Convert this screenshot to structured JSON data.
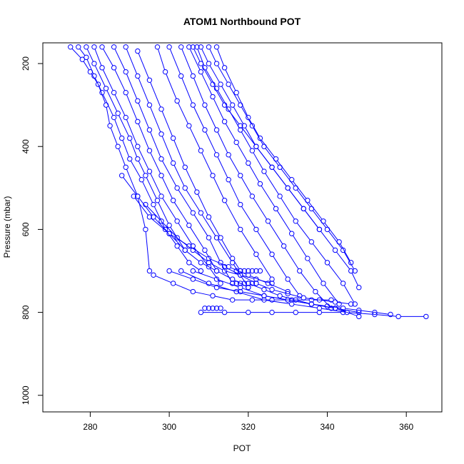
{
  "chart_data": {
    "type": "line",
    "title": "ATOM1 Northbound POT",
    "xlabel": "POT",
    "ylabel": "Pressure (mbar)",
    "xlim": [
      268,
      369
    ],
    "ylim": [
      1040,
      150
    ],
    "x_ticks": [
      280,
      300,
      320,
      340,
      360
    ],
    "y_ticks": [
      200,
      400,
      600,
      800,
      1000
    ],
    "grid": false,
    "markers": "open-circle",
    "series_color": "#0000ff",
    "series": [
      {
        "x": [
          275,
          278,
          280,
          282,
          284,
          285,
          287,
          289,
          292,
          294,
          295
        ],
        "y": [
          160,
          190,
          220,
          250,
          300,
          350,
          400,
          450,
          520,
          600,
          700
        ]
      },
      {
        "x": [
          277,
          279,
          281,
          283,
          286,
          288,
          290,
          293,
          296,
          299,
          302,
          305,
          308
        ],
        "y": [
          160,
          185,
          230,
          270,
          330,
          380,
          430,
          480,
          540,
          600,
          640,
          680,
          700
        ]
      },
      {
        "x": [
          279,
          281,
          284,
          287,
          290,
          292,
          294,
          297,
          300,
          304
        ],
        "y": [
          160,
          200,
          260,
          320,
          380,
          430,
          470,
          530,
          590,
          650
        ]
      },
      {
        "x": [
          281,
          283,
          286,
          289,
          292,
          295,
          298,
          302,
          306,
          310,
          313
        ],
        "y": [
          160,
          210,
          270,
          330,
          400,
          460,
          520,
          580,
          640,
          690,
          730
        ]
      },
      {
        "x": [
          283,
          286,
          289,
          292,
          295,
          298,
          301,
          305,
          309,
          312
        ],
        "y": [
          160,
          210,
          270,
          340,
          410,
          470,
          530,
          590,
          650,
          700
        ]
      },
      {
        "x": [
          286,
          289,
          292,
          295,
          298,
          302,
          306,
          310,
          313,
          316
        ],
        "y": [
          160,
          220,
          290,
          360,
          430,
          500,
          560,
          620,
          680,
          730
        ]
      },
      {
        "x": [
          289,
          292,
          295,
          298,
          301,
          304,
          308,
          312,
          316,
          320
        ],
        "y": [
          160,
          230,
          300,
          370,
          440,
          500,
          560,
          620,
          680,
          740
        ]
      },
      {
        "x": [
          292,
          295,
          298,
          301,
          304,
          307,
          310,
          313,
          316,
          318
        ],
        "y": [
          170,
          240,
          310,
          380,
          450,
          510,
          570,
          620,
          670,
          700
        ]
      },
      {
        "x": [
          297,
          299,
          302,
          305,
          308,
          311,
          314,
          318,
          322,
          326
        ],
        "y": [
          160,
          220,
          290,
          350,
          410,
          470,
          530,
          600,
          660,
          720
        ]
      },
      {
        "x": [
          300,
          303,
          306,
          309,
          312,
          315,
          318,
          322,
          326,
          330,
          333
        ],
        "y": [
          160,
          230,
          300,
          360,
          420,
          480,
          540,
          600,
          660,
          720,
          760
        ]
      },
      {
        "x": [
          303,
          306,
          309,
          312,
          315,
          318,
          321,
          325,
          329,
          333,
          337,
          341
        ],
        "y": [
          160,
          230,
          300,
          360,
          420,
          470,
          520,
          580,
          640,
          700,
          750,
          790
        ]
      },
      {
        "x": [
          305,
          308,
          311,
          314,
          317,
          320,
          323,
          327,
          331,
          335,
          339,
          343
        ],
        "y": [
          160,
          220,
          280,
          340,
          390,
          440,
          490,
          550,
          610,
          670,
          730,
          780
        ]
      },
      {
        "x": [
          307,
          309,
          312,
          315,
          318,
          321,
          324,
          328,
          332,
          336,
          340,
          344,
          347
        ],
        "y": [
          160,
          210,
          260,
          310,
          360,
          410,
          460,
          520,
          580,
          630,
          680,
          730,
          780
        ]
      },
      {
        "x": [
          308,
          310,
          313,
          316,
          319,
          322,
          326,
          330,
          334,
          338,
          342,
          346,
          348
        ],
        "y": [
          160,
          200,
          250,
          300,
          350,
          400,
          450,
          500,
          550,
          600,
          650,
          700,
          740
        ]
      },
      {
        "x": [
          310,
          312,
          315,
          318,
          321,
          324,
          328,
          332,
          336,
          340,
          344,
          347
        ],
        "y": [
          160,
          200,
          250,
          300,
          350,
          400,
          450,
          500,
          550,
          600,
          650,
          700
        ]
      },
      {
        "x": [
          312,
          314,
          317,
          320,
          323,
          327,
          331,
          335,
          339,
          343,
          346
        ],
        "y": [
          160,
          210,
          270,
          330,
          380,
          430,
          480,
          530,
          580,
          630,
          680
        ]
      },
      {
        "x": [
          306,
          308,
          311,
          314,
          318,
          322,
          326,
          330,
          334,
          338
        ],
        "y": [
          160,
          200,
          250,
          300,
          350,
          400,
          450,
          500,
          550,
          600
        ]
      },
      {
        "x": [
          294,
          298,
          302,
          306,
          310,
          314,
          318,
          322,
          326
        ],
        "y": [
          540,
          580,
          620,
          650,
          680,
          700,
          710,
          720,
          730
        ]
      },
      {
        "x": [
          288,
          292,
          296,
          300,
          304,
          308,
          312,
          316,
          320
        ],
        "y": [
          470,
          520,
          570,
          610,
          650,
          680,
          700,
          720,
          740
        ]
      },
      {
        "x": [
          291,
          295,
          300,
          305,
          310,
          315,
          320,
          325,
          330
        ],
        "y": [
          520,
          570,
          610,
          640,
          670,
          690,
          710,
          730,
          750
        ]
      },
      {
        "x": [
          296,
          301,
          306,
          311,
          316,
          321,
          326,
          331,
          336,
          341
        ],
        "y": [
          710,
          730,
          750,
          760,
          770,
          770,
          770,
          770,
          770,
          770
        ]
      },
      {
        "x": [
          300,
          306,
          312,
          318,
          324,
          330,
          336,
          342,
          348
        ],
        "y": [
          700,
          720,
          740,
          750,
          760,
          770,
          780,
          790,
          810
        ]
      },
      {
        "x": [
          303,
          310,
          317,
          324,
          331,
          338,
          345,
          352,
          358,
          365
        ],
        "y": [
          700,
          730,
          750,
          770,
          780,
          790,
          800,
          805,
          810,
          810
        ]
      },
      {
        "x": [
          306,
          312,
          318,
          324,
          330,
          336,
          342,
          348
        ],
        "y": [
          700,
          720,
          740,
          760,
          770,
          780,
          790,
          800
        ]
      },
      {
        "x": [
          309,
          310,
          311,
          312,
          313
        ],
        "y": [
          790,
          790,
          790,
          790,
          790
        ]
      },
      {
        "x": [
          317,
          318,
          319,
          320,
          321,
          322,
          323
        ],
        "y": [
          700,
          700,
          700,
          700,
          700,
          700,
          700
        ]
      },
      {
        "x": [
          316,
          317,
          318,
          319,
          320,
          321,
          322
        ],
        "y": [
          730,
          730,
          730,
          730,
          730,
          730,
          730
        ]
      },
      {
        "x": [
          314,
          318,
          322,
          326,
          330,
          334,
          338,
          342,
          346
        ],
        "y": [
          690,
          710,
          730,
          745,
          755,
          765,
          770,
          775,
          780
        ]
      },
      {
        "x": [
          320,
          324,
          328,
          332,
          336,
          340,
          344,
          348,
          352,
          356
        ],
        "y": [
          730,
          745,
          760,
          770,
          780,
          785,
          790,
          795,
          800,
          805
        ]
      },
      {
        "x": [
          308,
          314,
          320,
          326,
          332,
          338,
          344
        ],
        "y": [
          800,
          800,
          800,
          800,
          800,
          800,
          800
        ]
      }
    ]
  }
}
